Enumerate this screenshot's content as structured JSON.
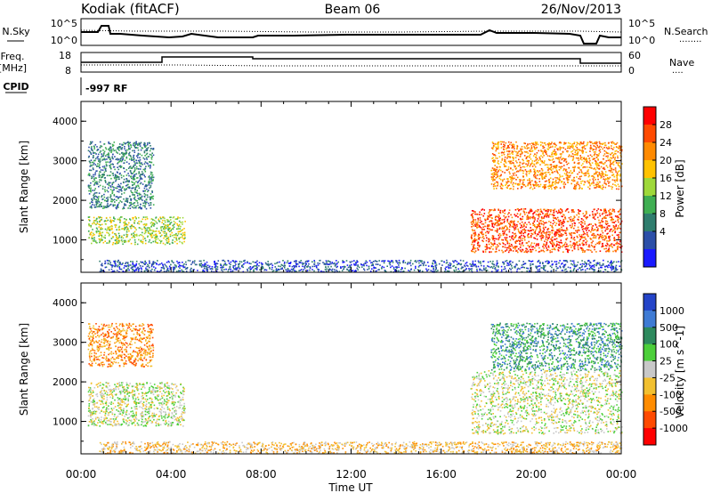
{
  "header": {
    "station": "Kodiak (fitACF)",
    "beam": "Beam 06",
    "date": "26/Nov/2013"
  },
  "param_panel": {
    "nsky_label": "N.Sky",
    "nsearch_label": "N.Search",
    "nsearch_dots": "........",
    "nsky_ticks": [
      "10^5",
      "10^0"
    ],
    "nsearch_ticks": [
      "10^5",
      "10^0"
    ],
    "freq_label_1": "Freq.",
    "freq_label_2": "[MHz]",
    "freq_ticks": [
      "18",
      "8"
    ],
    "nave_label": "Nave",
    "nave_dots": "....",
    "nave_ticks": [
      "60",
      "0"
    ],
    "cpid_label": "CPID",
    "cpid_value": "-997 RF"
  },
  "time_axis": {
    "label": "Time UT",
    "ticks": [
      "00:00",
      "04:00",
      "08:00",
      "12:00",
      "16:00",
      "20:00",
      "00:00"
    ]
  },
  "range_axis": {
    "label": "Slant Range [km]",
    "ticks": [
      "1000",
      "2000",
      "3000",
      "4000"
    ]
  },
  "power_colorbar": {
    "label": "Power [dB]",
    "ticks": [
      "28",
      "24",
      "20",
      "16",
      "12",
      "8",
      "4"
    ],
    "colors": [
      "#ff0000",
      "#ff4a00",
      "#ff8a00",
      "#ffc200",
      "#9ed83a",
      "#3fae52",
      "#2f7d6e",
      "#2c4fa8",
      "#1a1aff"
    ]
  },
  "velocity_colorbar": {
    "label": "Velocity [m s^-1]",
    "ticks": [
      "1000",
      "500",
      "100",
      "25",
      "-25",
      "-100",
      "-500",
      "-1000"
    ],
    "colors": [
      "#2444c8",
      "#3f7bd4",
      "#2e8a5e",
      "#4ccf3a",
      "#c8c8c8",
      "#f2c030",
      "#ff8c00",
      "#ff4a00",
      "#ff0000"
    ]
  },
  "chart_data": {
    "type": "heatmap",
    "title": "Kodiak (fitACF) Beam 06 26/Nov/2013",
    "x_range_hours": [
      0,
      24
    ],
    "y_range_km": [
      180,
      4500
    ],
    "power_regions": [
      {
        "t0": 0.3,
        "t1": 4.6,
        "r0": 900,
        "r1": 1600,
        "level": 4
      },
      {
        "t0": 0.3,
        "t1": 3.2,
        "r0": 1800,
        "r1": 3500,
        "level": 2
      },
      {
        "t0": 0.8,
        "t1": 24,
        "r0": 200,
        "r1": 500,
        "level": 1
      },
      {
        "t0": 17.3,
        "t1": 24,
        "r0": 700,
        "r1": 1800,
        "level": 7
      },
      {
        "t0": 18.2,
        "t1": 24,
        "r0": 2300,
        "r1": 3500,
        "level": 6
      }
    ],
    "velocity_regions": [
      {
        "t0": 0.3,
        "t1": 3.2,
        "r0": 2400,
        "r1": 3500,
        "level": 6
      },
      {
        "t0": 0.3,
        "t1": 4.6,
        "r0": 900,
        "r1": 2000,
        "level": 4
      },
      {
        "t0": 0.8,
        "t1": 24,
        "r0": 200,
        "r1": 500,
        "level": 5
      },
      {
        "t0": 17.3,
        "t1": 24,
        "r0": 700,
        "r1": 2300,
        "level": 4
      },
      {
        "t0": 18.2,
        "t1": 24,
        "r0": 2300,
        "r1": 3500,
        "level": 2
      }
    ]
  }
}
